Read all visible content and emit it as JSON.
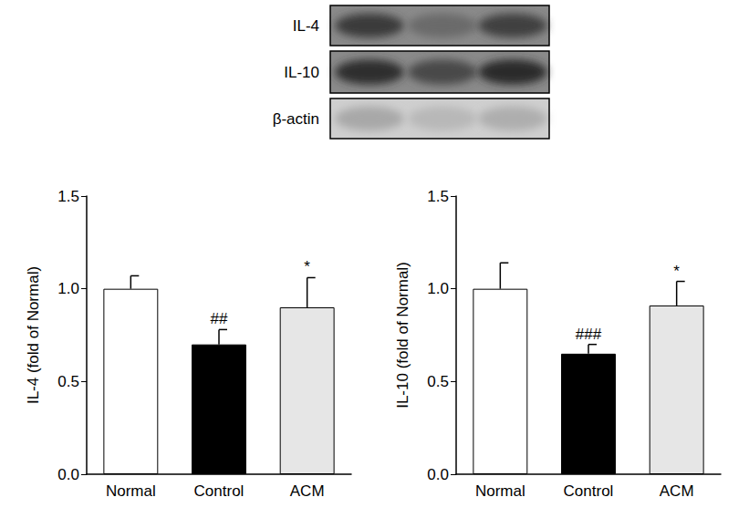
{
  "blot_labels": [
    "IL-4",
    "IL-10",
    "β-actin"
  ],
  "chart_data": [
    {
      "type": "bar",
      "y_label": "IL-4 (fold of Normal)",
      "categories": [
        "Normal",
        "Control",
        "ACM"
      ],
      "values": [
        1.0,
        0.7,
        0.9
      ],
      "errors": [
        0.07,
        0.08,
        0.16
      ],
      "colors": [
        "#ffffff",
        "#000000",
        "#e6e6e6"
      ],
      "annotations": [
        null,
        "##",
        "*"
      ],
      "ylim": [
        0,
        1.5
      ],
      "yticks": [
        {
          "value": 0,
          "label": "0.0"
        },
        0.5,
        {
          "value": 1,
          "label": "1.0"
        },
        1.5
      ],
      "grid": false
    },
    {
      "type": "bar",
      "y_label": "IL-10 (fold of Normal)",
      "categories": [
        "Normal",
        "Control",
        "ACM"
      ],
      "values": [
        1.0,
        0.65,
        0.91
      ],
      "errors": [
        0.14,
        0.05,
        0.13
      ],
      "colors": [
        "#ffffff",
        "#000000",
        "#e6e6e6"
      ],
      "annotations": [
        null,
        "###",
        "*"
      ],
      "ylim": [
        0,
        1.5
      ],
      "yticks": [
        {
          "value": 0,
          "label": "0.0"
        },
        0.5,
        {
          "value": 1,
          "label": "1.0"
        },
        1.5
      ],
      "grid": false
    }
  ]
}
